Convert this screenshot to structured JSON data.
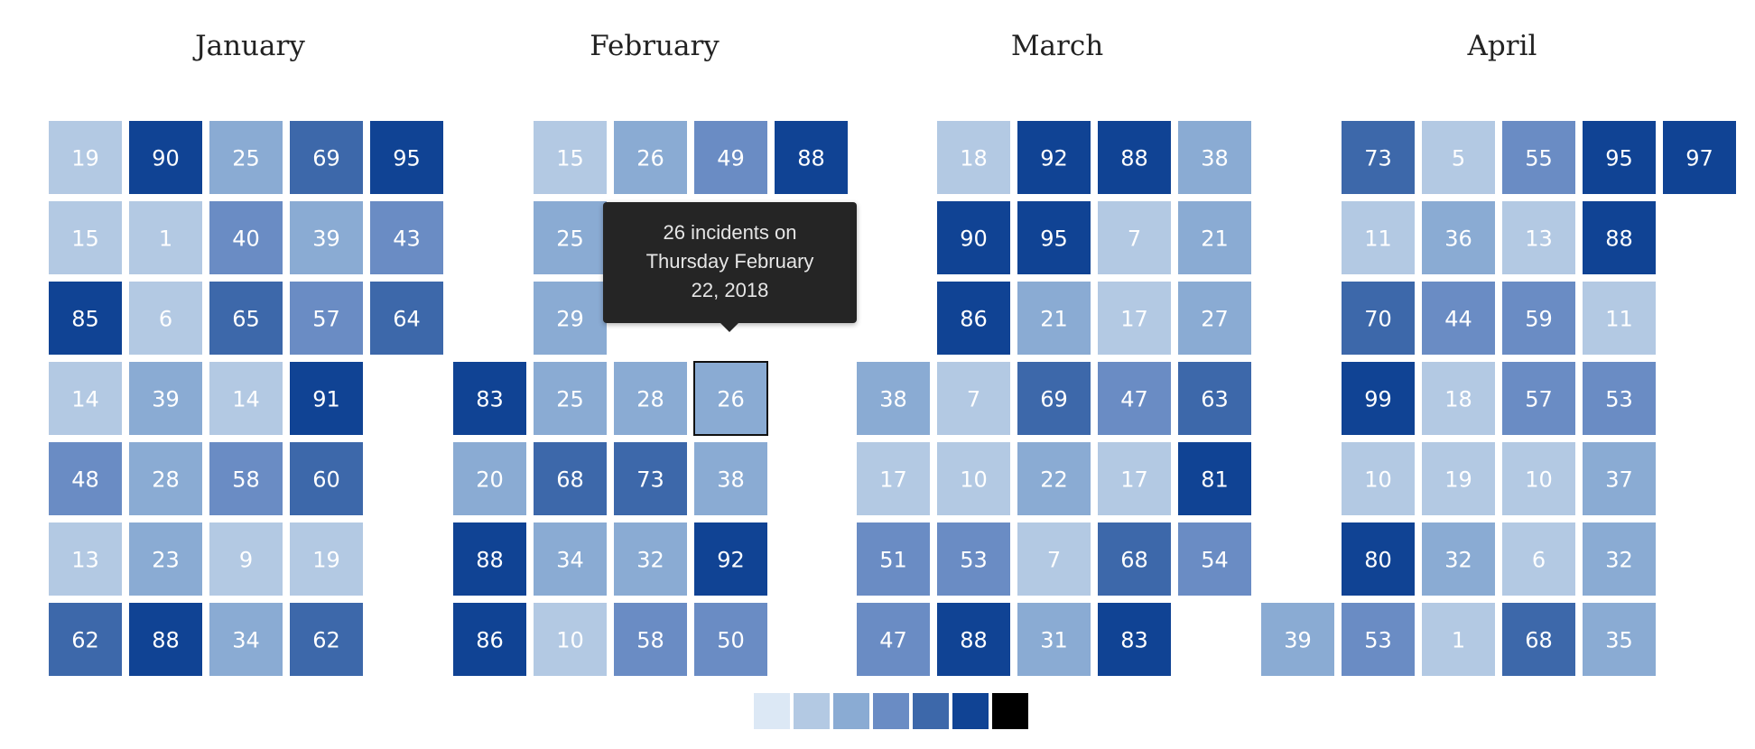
{
  "chart_data": {
    "type": "heatmap",
    "description_of_layout": "calendar heatmap, each month a block of week columns, cells contain daily incident counts",
    "months": [
      {
        "name": "January",
        "weeks": [
          [
            19,
            15,
            85,
            14,
            48,
            13,
            62
          ],
          [
            90,
            1,
            6,
            39,
            28,
            23,
            88
          ],
          [
            25,
            40,
            65,
            14,
            58,
            9,
            34
          ],
          [
            69,
            39,
            57,
            91,
            60,
            19,
            62
          ],
          [
            95,
            43,
            64,
            null,
            null,
            null,
            null
          ]
        ]
      },
      {
        "name": "February",
        "weeks": [
          [
            null,
            null,
            null,
            83,
            20,
            88,
            86
          ],
          [
            15,
            25,
            29,
            25,
            68,
            34,
            10
          ],
          [
            26,
            null,
            null,
            28,
            73,
            32,
            58
          ],
          [
            49,
            null,
            null,
            26,
            38,
            92,
            50
          ],
          [
            88,
            null,
            null,
            null,
            null,
            null,
            null
          ]
        ]
      },
      {
        "name": "March",
        "weeks": [
          [
            null,
            null,
            null,
            38,
            17,
            51,
            47
          ],
          [
            18,
            90,
            86,
            7,
            10,
            53,
            88
          ],
          [
            92,
            95,
            21,
            69,
            22,
            7,
            31
          ],
          [
            88,
            7,
            17,
            47,
            17,
            68,
            83
          ],
          [
            38,
            21,
            27,
            63,
            81,
            54,
            null
          ]
        ]
      },
      {
        "name": "April",
        "weeks": [
          [
            null,
            null,
            null,
            null,
            null,
            null,
            39
          ],
          [
            73,
            11,
            70,
            99,
            10,
            80,
            53
          ],
          [
            5,
            36,
            44,
            18,
            19,
            32,
            1
          ],
          [
            55,
            13,
            59,
            57,
            10,
            6,
            68
          ],
          [
            95,
            88,
            11,
            53,
            37,
            32,
            35
          ],
          [
            97,
            null,
            null,
            null,
            null,
            null,
            null
          ]
        ]
      }
    ],
    "color_scale": [
      "#dce8f5",
      "#b3c9e3",
      "#8aabd3",
      "#6a8cc4",
      "#3d68aa",
      "#104394",
      "#000000"
    ],
    "highlight": {
      "month": "February",
      "week": 3,
      "day": 3,
      "value": 26
    },
    "tooltip_lines": [
      "26 incidents on",
      "Thursday February",
      "22, 2018"
    ]
  }
}
